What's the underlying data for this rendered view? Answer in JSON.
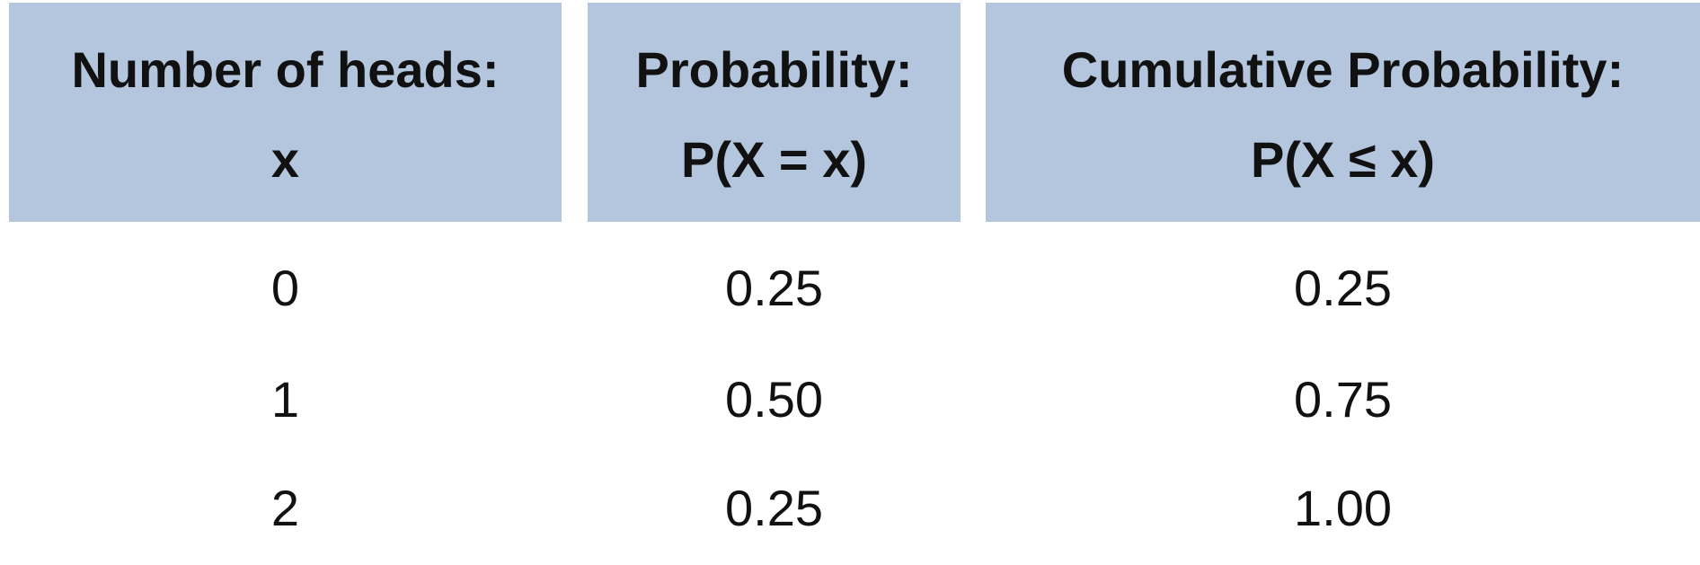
{
  "table": {
    "headers": [
      {
        "line1": "Number of heads:",
        "line2": "x"
      },
      {
        "line1": "Probability:",
        "line2": "P(X = x)"
      },
      {
        "line1": "Cumulative Probability:",
        "line2": "P(X ≤ x)"
      }
    ],
    "rows": [
      [
        "0",
        "0.25",
        "0.25"
      ],
      [
        "1",
        "0.50",
        "0.75"
      ],
      [
        "2",
        "0.25",
        "1.00"
      ]
    ]
  },
  "colors": {
    "header_background": "#b3c6de",
    "text": "#111111"
  }
}
